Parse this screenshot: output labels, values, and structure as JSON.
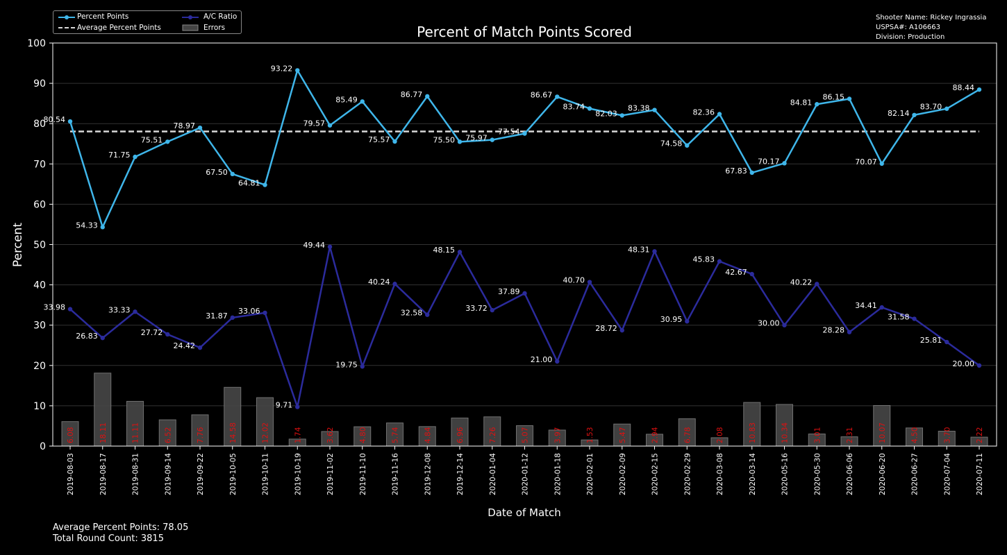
{
  "chart_data": {
    "type": "line",
    "title": "Percent of Match Points Scored",
    "xlabel": "Date of Match",
    "ylabel": "Percent",
    "ylim": [
      0,
      100
    ],
    "yticks": [
      0,
      10,
      20,
      30,
      40,
      50,
      60,
      70,
      80,
      90,
      100
    ],
    "grid": true,
    "legend_position": "top-left",
    "categories": [
      "2019-08-03",
      "2019-08-17",
      "2019-08-31",
      "2019-09-14",
      "2019-09-22",
      "2019-10-05",
      "2019-10-11",
      "2019-10-19",
      "2019-11-02",
      "2019-11-10",
      "2019-11-16",
      "2019-12-08",
      "2019-12-14",
      "2020-01-04",
      "2020-01-12",
      "2020-01-18",
      "2020-02-01",
      "2020-02-09",
      "2020-02-15",
      "2020-02-29",
      "2020-03-08",
      "2020-03-14",
      "2020-05-16",
      "2020-05-30",
      "2020-06-06",
      "2020-06-20",
      "2020-06-27",
      "2020-07-04",
      "2020-07-11"
    ],
    "series": [
      {
        "name": "Percent Points",
        "type": "line",
        "color": "#3fb6ea",
        "values": [
          80.54,
          54.33,
          71.75,
          75.51,
          78.97,
          67.5,
          64.81,
          93.22,
          79.57,
          85.49,
          75.57,
          86.77,
          75.5,
          75.97,
          77.54,
          86.67,
          83.74,
          82.03,
          83.38,
          74.58,
          82.36,
          67.83,
          70.17,
          84.81,
          86.15,
          70.07,
          82.14,
          83.7,
          88.44
        ],
        "labels": [
          "80.54",
          "54.33",
          "71.75",
          "75.51",
          "78.97",
          "67.50",
          "64.81",
          "93.22",
          "79.57",
          "85.49",
          "75.57",
          "86.77",
          "75.50",
          "75.97",
          "77.54",
          "86.67",
          "83.74",
          "82.03",
          "83.38",
          "74.58",
          "82.36",
          "67.83",
          "70.17",
          "84.81",
          "86.15",
          "70.07",
          "82.14",
          "83.70",
          "88.44"
        ]
      },
      {
        "name": "Average Percent Points",
        "type": "dashed-line",
        "color": "#d9d9d9",
        "value": 78.05
      },
      {
        "name": "A/C Ratio",
        "type": "line",
        "color": "#2b2b9c",
        "values": [
          33.98,
          26.83,
          33.33,
          27.72,
          24.42,
          31.87,
          33.06,
          9.71,
          49.44,
          19.75,
          40.24,
          32.58,
          48.15,
          33.72,
          37.89,
          21.0,
          40.7,
          28.72,
          48.31,
          30.95,
          45.83,
          42.67,
          30.0,
          40.22,
          28.28,
          34.41,
          31.58,
          25.81,
          20.0
        ],
        "labels": [
          "33.98",
          "26.83",
          "33.33",
          "27.72",
          "24.42",
          "31.87",
          "33.06",
          "9.71",
          "49.44",
          "19.75",
          "40.24",
          "32.58",
          "48.15",
          "33.72",
          "37.89",
          "21.00",
          "40.70",
          "28.72",
          "48.31",
          "30.95",
          "45.83",
          "42.67",
          "30.00",
          "40.22",
          "28.28",
          "34.41",
          "31.58",
          "25.81",
          "20.00"
        ]
      },
      {
        "name": "Errors",
        "type": "bar",
        "color": "#444444",
        "label_color": "#e01010",
        "values": [
          6.08,
          18.11,
          11.11,
          6.52,
          7.76,
          14.58,
          12.02,
          1.74,
          3.62,
          4.8,
          5.74,
          4.84,
          6.96,
          7.26,
          5.07,
          3.97,
          1.53,
          5.47,
          2.94,
          6.78,
          2.08,
          10.83,
          10.34,
          3.01,
          2.31,
          10.07,
          4.5,
          3.7,
          2.22
        ],
        "labels": [
          "6.08",
          "18.11",
          "11.11",
          "6.52",
          "7.76",
          "14.58",
          "12.02",
          "1.74",
          "3.62",
          "4.80",
          "5.74",
          "4.84",
          "6.96",
          "7.26",
          "5.07",
          "3.97",
          "1.53",
          "5.47",
          "2.94",
          "6.78",
          "2.08",
          "10.83",
          "10.34",
          "3.01",
          "2.31",
          "10.07",
          "4.50",
          "3.70",
          "2.22"
        ]
      }
    ]
  },
  "info": {
    "shooter": "Shooter Name: Rickey Ingrassia",
    "uspsa": "USPSA#: A106663",
    "division": "Division: Production"
  },
  "footer": {
    "average": "Average Percent Points: 78.05",
    "round_count": "Total Round Count: 3815"
  },
  "legend": {
    "percent_points": "Percent Points",
    "average_percent_points": "Average Percent Points",
    "ac_ratio": "A/C Ratio",
    "errors": "Errors"
  }
}
